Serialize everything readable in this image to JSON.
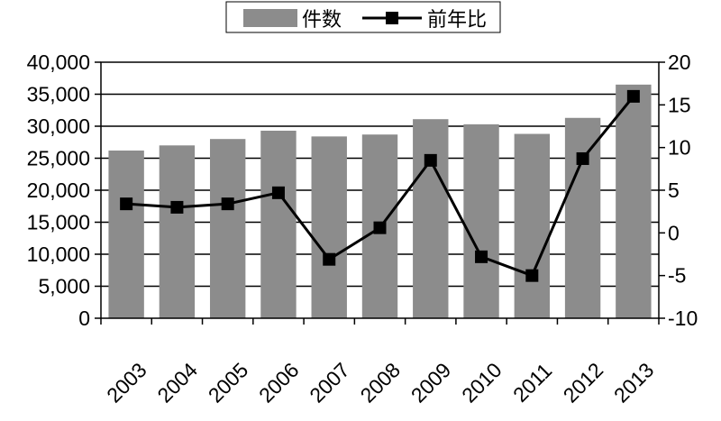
{
  "chart_data": {
    "type": "bar",
    "categories": [
      "2003",
      "2004",
      "2005",
      "2006",
      "2007",
      "2008",
      "2009",
      "2010",
      "2011",
      "2012",
      "2013"
    ],
    "series": [
      {
        "name": "件数",
        "type": "bar",
        "axis": "left",
        "color": "#8c8c8c",
        "values": [
          26200,
          27000,
          28000,
          29300,
          28400,
          28700,
          31100,
          30300,
          28800,
          31300,
          36500
        ]
      },
      {
        "name": "前年比",
        "type": "line",
        "axis": "right",
        "color": "#000000",
        "marker": "square",
        "values": [
          3.4,
          3.0,
          3.4,
          4.7,
          -3.1,
          0.6,
          8.5,
          -2.8,
          -5.0,
          8.7,
          16.0
        ]
      }
    ],
    "y_left": {
      "lim": [
        0,
        40000
      ],
      "ticks": [
        0,
        5000,
        10000,
        15000,
        20000,
        25000,
        30000,
        35000,
        40000
      ],
      "tick_labels": [
        "0",
        "5,000",
        "10,000",
        "15,000",
        "20,000",
        "25,000",
        "30,000",
        "35,000",
        "40,000"
      ]
    },
    "y_right": {
      "lim": [
        -10,
        20
      ],
      "ticks": [
        -10,
        -5,
        0,
        5,
        10,
        15,
        20
      ],
      "tick_labels": [
        "-10",
        "-5",
        "0",
        "5",
        "10",
        "15",
        "20"
      ]
    },
    "grid": "horizontal",
    "legend_position": "top-center"
  }
}
